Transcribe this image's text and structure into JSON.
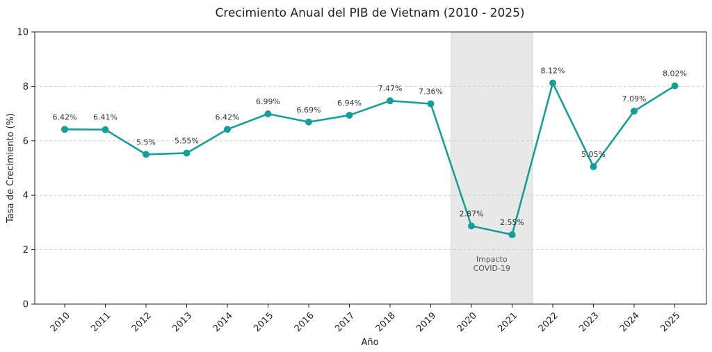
{
  "chart_data": {
    "type": "line",
    "title": "Crecimiento Anual del PIB de Vietnam (2010 - 2025)",
    "xlabel": "Año",
    "ylabel": "Tasa de Crecimiento (%)",
    "ylim": [
      0,
      10
    ],
    "yticks": [
      0,
      2,
      4,
      6,
      8,
      10
    ],
    "grid": "horizontal-dashed",
    "categories": [
      "2010",
      "2011",
      "2012",
      "2013",
      "2014",
      "2015",
      "2016",
      "2017",
      "2018",
      "2019",
      "2020",
      "2021",
      "2022",
      "2023",
      "2024",
      "2025"
    ],
    "series": [
      {
        "values": [
          6.42,
          6.41,
          5.5,
          5.55,
          6.42,
          6.99,
          6.69,
          6.94,
          7.47,
          7.36,
          2.87,
          2.55,
          8.12,
          5.05,
          7.09,
          8.02
        ],
        "data_labels": [
          "6.42%",
          "6.41%",
          "5.5%",
          "5.55%",
          "6.42%",
          "6.99%",
          "6.69%",
          "6.94%",
          "7.47%",
          "7.36%",
          "2.87%",
          "2.55%",
          "8.12%",
          "5.05%",
          "7.09%",
          "8.02%"
        ],
        "color": "#14a096"
      }
    ],
    "shaded_region": {
      "from_category": "2020",
      "to_category": "2021",
      "label_lines": [
        "Impacto",
        "COVID-19"
      ],
      "color": "#e8e8e8"
    }
  }
}
